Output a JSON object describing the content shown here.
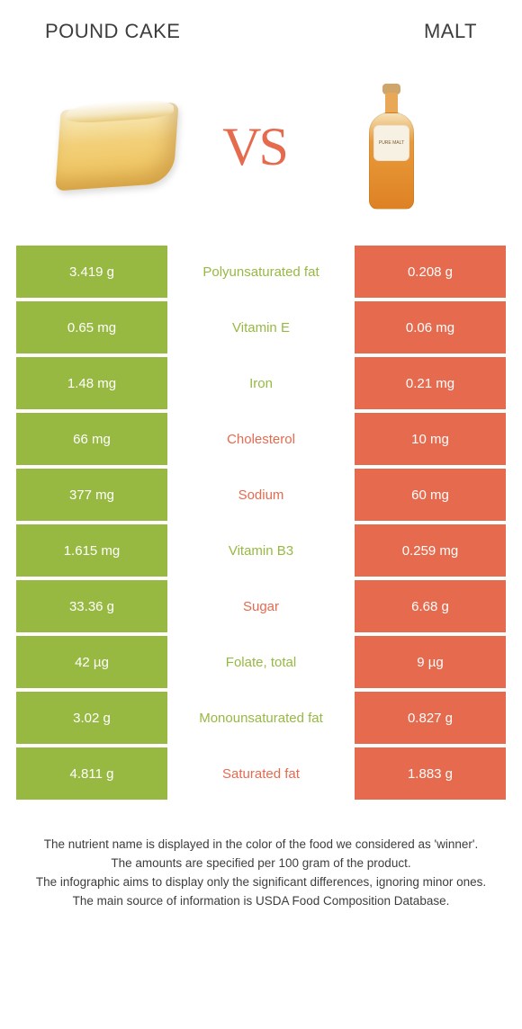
{
  "header": {
    "left_title": "POUND CAKE",
    "right_title": "MALT",
    "vs_text": "VS",
    "bottle_label": "PURE MALT"
  },
  "colors": {
    "green": "#97b942",
    "orange": "#e66a4e",
    "text": "#3d3d3d",
    "white": "#ffffff"
  },
  "table": {
    "rows": [
      {
        "left": "3.419 g",
        "mid": "Polyunsaturated fat",
        "right": "0.208 g",
        "winner": "left"
      },
      {
        "left": "0.65 mg",
        "mid": "Vitamin E",
        "right": "0.06 mg",
        "winner": "left"
      },
      {
        "left": "1.48 mg",
        "mid": "Iron",
        "right": "0.21 mg",
        "winner": "left"
      },
      {
        "left": "66 mg",
        "mid": "Cholesterol",
        "right": "10 mg",
        "winner": "right"
      },
      {
        "left": "377 mg",
        "mid": "Sodium",
        "right": "60 mg",
        "winner": "right"
      },
      {
        "left": "1.615 mg",
        "mid": "Vitamin B3",
        "right": "0.259 mg",
        "winner": "left"
      },
      {
        "left": "33.36 g",
        "mid": "Sugar",
        "right": "6.68 g",
        "winner": "right"
      },
      {
        "left": "42 µg",
        "mid": "Folate, total",
        "right": "9 µg",
        "winner": "left"
      },
      {
        "left": "3.02 g",
        "mid": "Monounsaturated fat",
        "right": "0.827 g",
        "winner": "left"
      },
      {
        "left": "4.811 g",
        "mid": "Saturated fat",
        "right": "1.883 g",
        "winner": "right"
      }
    ]
  },
  "footer": {
    "line1": "The nutrient name is displayed in the color of the food we considered as 'winner'.",
    "line2": "The amounts are specified per 100 gram of the product.",
    "line3": "The infographic aims to display only the significant differences, ignoring minor ones.",
    "line4": "The main source of information is USDA Food Composition Database."
  }
}
